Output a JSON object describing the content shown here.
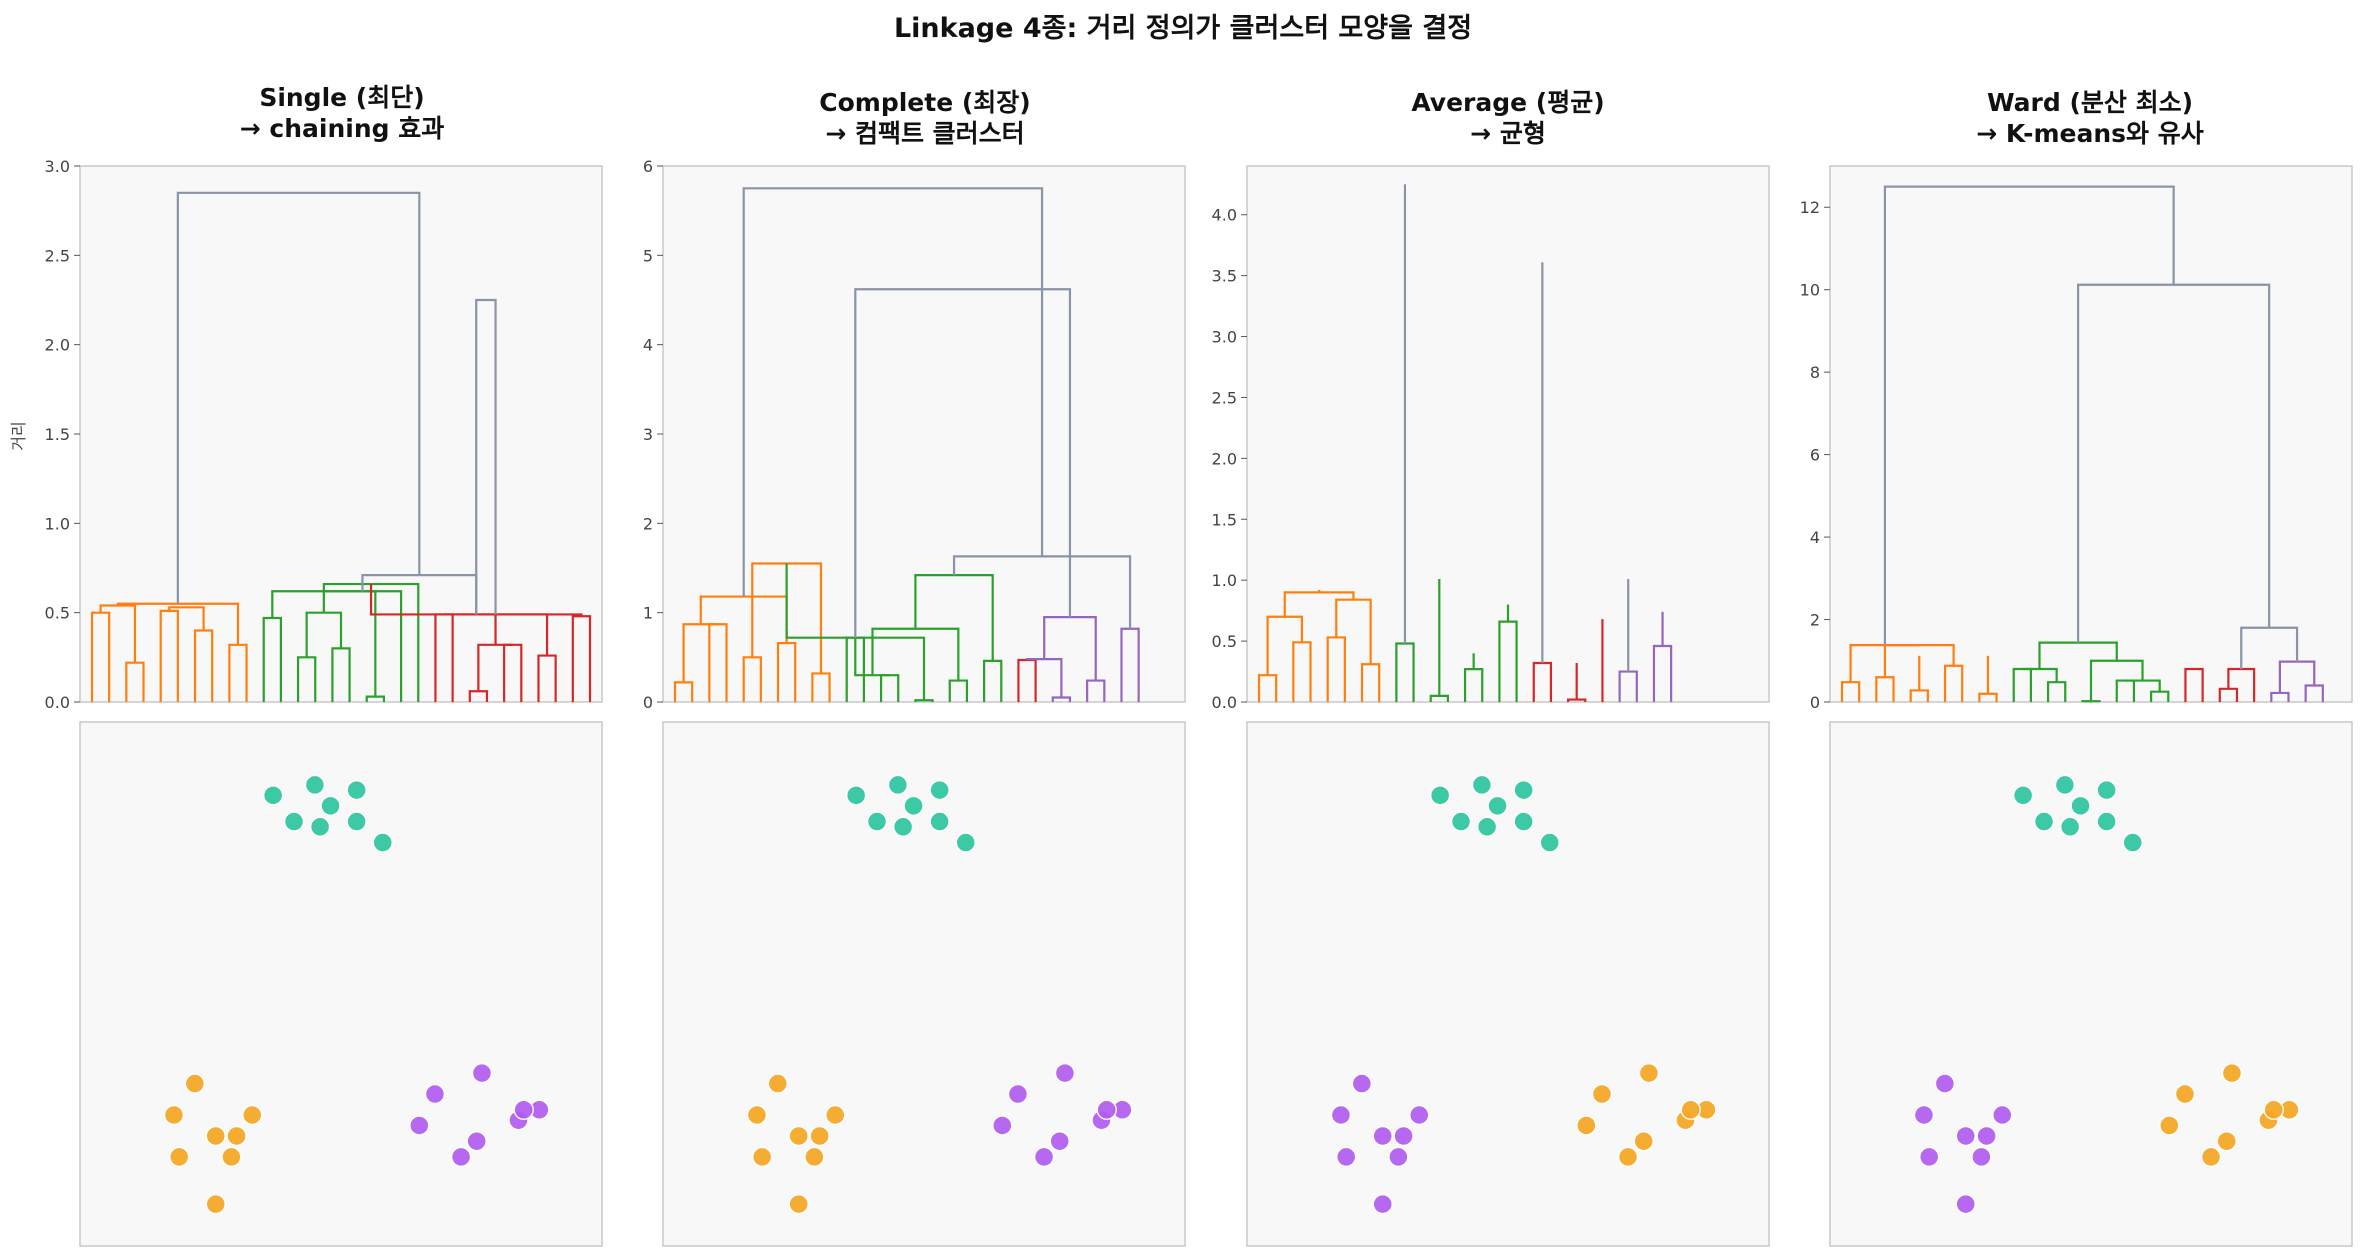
{
  "figure": {
    "title": "Linkage 4종: 거리 정의가 클러스터 모양을 결정",
    "ylabel": "거리"
  },
  "colors": {
    "c1": "#ff7f0e",
    "c2": "#2ca02c",
    "c3": "#d62728",
    "c4": "#9467bd",
    "above": "#8a94a6",
    "teal": "#2ec4a0",
    "orange_pt": "#f5a623",
    "purple_pt": "#b15cf0",
    "panel_bg": "#f8f8f8",
    "frame": "#c8c8c8"
  },
  "panels": [
    {
      "title_line1": "Single (최단)",
      "title_line2": "→ chaining 효과",
      "yticks": [
        "0.0",
        "0.5",
        "1.0",
        "1.5",
        "2.0",
        "2.5",
        "3.0"
      ]
    },
    {
      "title_line1": "Complete (최장)",
      "title_line2": "→ 컴팩트 클러스터",
      "yticks": [
        "0",
        "1",
        "2",
        "3",
        "4",
        "5",
        "6"
      ]
    },
    {
      "title_line1": "Average (평균)",
      "title_line2": "→ 균형",
      "yticks": [
        "0.0",
        "0.5",
        "1.0",
        "1.5",
        "2.0",
        "2.5",
        "3.0",
        "3.5",
        "4.0"
      ]
    },
    {
      "title_line1": "Ward (분산 최소)",
      "title_line2": "→ K-means와 유사",
      "yticks": [
        "0",
        "2",
        "4",
        "6",
        "8",
        "10",
        "12"
      ]
    }
  ],
  "chart_data": [
    {
      "type": "dendrogram",
      "title": "Single (최단)\n→ chaining 효과",
      "ylabel": "거리",
      "ylim": [
        0,
        3.0
      ],
      "n_leaves": 30,
      "links": [
        [
          0,
          1,
          0.5,
          "c1"
        ],
        [
          2,
          3,
          0.22,
          "c1"
        ],
        [
          4,
          5,
          0.51,
          "c1"
        ],
        [
          6,
          7,
          0.4,
          "c1"
        ],
        [
          8,
          9,
          0.32,
          "c1"
        ],
        [
          30,
          31,
          0.54,
          "c1"
        ],
        [
          32,
          33,
          0.53,
          "c1"
        ],
        [
          34,
          35,
          0.55,
          "c1"
        ],
        [
          10,
          11,
          0.47,
          "c2"
        ],
        [
          12,
          13,
          0.25,
          "c2"
        ],
        [
          14,
          15,
          0.3,
          "c2"
        ],
        [
          16,
          17,
          0.03,
          "c2"
        ],
        [
          39,
          40,
          0.5,
          "c2"
        ],
        [
          38,
          41,
          0.62,
          "c2"
        ],
        [
          42,
          18,
          0.62,
          "c2"
        ],
        [
          43,
          19,
          0.66,
          "c2"
        ],
        [
          20,
          21,
          0.49,
          "c3"
        ],
        [
          22,
          23,
          0.06,
          "c3"
        ],
        [
          24,
          25,
          0.32,
          "c3"
        ],
        [
          26,
          27,
          0.26,
          "c3"
        ],
        [
          28,
          29,
          0.48,
          "c3"
        ],
        [
          47,
          48,
          0.32,
          "c3"
        ],
        [
          46,
          49,
          0.49,
          "c3"
        ],
        [
          45,
          50,
          0.49,
          "c3"
        ],
        [
          51,
          52,
          0.49,
          "c3"
        ],
        [
          44,
          53,
          0.71,
          "above"
        ],
        [
          53,
          54,
          2.25,
          "above"
        ],
        [
          37,
          55,
          2.85,
          "above"
        ]
      ]
    },
    {
      "type": "dendrogram",
      "title": "Complete (최장)\n→ 컴팩트 클러스터",
      "ylim": [
        0,
        6
      ],
      "n_leaves": 30,
      "links": [
        [
          0,
          1,
          0.22,
          "c1"
        ],
        [
          2,
          3,
          0.87,
          "c1"
        ],
        [
          4,
          5,
          0.5,
          "c1"
        ],
        [
          30,
          31,
          0.87,
          "c1"
        ],
        [
          6,
          7,
          0.66,
          "c1"
        ],
        [
          8,
          9,
          0.32,
          "c1"
        ],
        [
          33,
          34,
          1.18,
          "c1"
        ],
        [
          32,
          35,
          1.55,
          "c1"
        ],
        [
          10,
          11,
          0.72,
          "c2"
        ],
        [
          12,
          13,
          0.3,
          "c2"
        ],
        [
          14,
          15,
          0.02,
          "c2"
        ],
        [
          38,
          39,
          0.3,
          "c2"
        ],
        [
          16,
          17,
          0.24,
          "c2"
        ],
        [
          18,
          19,
          0.46,
          "c2"
        ],
        [
          41,
          42,
          0.82,
          "c2"
        ],
        [
          37,
          40,
          0.72,
          "c2"
        ],
        [
          43,
          44,
          1.42,
          "c2"
        ],
        [
          20,
          21,
          0.47,
          "c3"
        ],
        [
          22,
          23,
          0.05,
          "c4"
        ],
        [
          24,
          25,
          0.24,
          "c4"
        ],
        [
          47,
          48,
          0.48,
          "c4"
        ],
        [
          26,
          27,
          0.82,
          "c4"
        ],
        [
          49,
          50,
          0.95,
          "c4"
        ],
        [
          46,
          51,
          1.63,
          "above"
        ],
        [
          45,
          52,
          4.62,
          "above"
        ],
        [
          36,
          53,
          5.75,
          "above"
        ]
      ]
    },
    {
      "type": "dendrogram",
      "title": "Average (평균)\n→ 균형",
      "ylim": [
        0,
        4.4
      ],
      "n_leaves": 30,
      "links": [
        [
          0,
          1,
          0.22,
          "c1"
        ],
        [
          2,
          3,
          0.49,
          "c1"
        ],
        [
          4,
          5,
          0.53,
          "c1"
        ],
        [
          6,
          7,
          0.31,
          "c1"
        ],
        [
          30,
          31,
          0.7,
          "c1"
        ],
        [
          32,
          33,
          0.84,
          "c1"
        ],
        [
          34,
          35,
          0.9,
          "c1"
        ],
        [
          36,
          37,
          0.92,
          "c1"
        ],
        [
          8,
          9,
          0.48,
          "c2"
        ],
        [
          10,
          11,
          0.05,
          "c2"
        ],
        [
          12,
          13,
          0.27,
          "c2"
        ],
        [
          40,
          41,
          0.4,
          "c2"
        ],
        [
          14,
          15,
          0.66,
          "c2"
        ],
        [
          42,
          43,
          0.8,
          "c2"
        ],
        [
          39,
          44,
          1.01,
          "c2"
        ],
        [
          16,
          17,
          0.32,
          "c3"
        ],
        [
          18,
          19,
          0.02,
          "c3"
        ],
        [
          46,
          47,
          0.32,
          "c3"
        ],
        [
          20,
          48,
          0.68,
          "c3"
        ],
        [
          21,
          22,
          0.25,
          "c4"
        ],
        [
          23,
          24,
          0.46,
          "c4"
        ],
        [
          50,
          51,
          0.74,
          "c4"
        ],
        [
          49,
          52,
          1.01,
          "above"
        ],
        [
          45,
          53,
          3.61,
          "above"
        ],
        [
          38,
          54,
          4.25,
          "above"
        ]
      ]
    },
    {
      "type": "dendrogram",
      "title": "Ward (분산 최소)\n→ K-means와 유사",
      "ylim": [
        0,
        13
      ],
      "n_leaves": 30,
      "links": [
        [
          0,
          1,
          0.48,
          "c1"
        ],
        [
          2,
          3,
          0.6,
          "c1"
        ],
        [
          4,
          5,
          0.28,
          "c1"
        ],
        [
          32,
          33,
          1.12,
          "c1"
        ],
        [
          6,
          7,
          0.88,
          "c1"
        ],
        [
          8,
          9,
          0.2,
          "c1"
        ],
        [
          35,
          36,
          1.12,
          "c1"
        ],
        [
          31,
          34,
          1.38,
          "c1"
        ],
        [
          30,
          37,
          1.38,
          "c1"
        ],
        [
          10,
          11,
          0.8,
          "c2"
        ],
        [
          12,
          13,
          0.48,
          "c2"
        ],
        [
          39,
          40,
          0.8,
          "c2"
        ],
        [
          14,
          15,
          0.02,
          "c2"
        ],
        [
          16,
          17,
          0.52,
          "c2"
        ],
        [
          18,
          19,
          0.25,
          "c2"
        ],
        [
          43,
          44,
          0.52,
          "c2"
        ],
        [
          42,
          45,
          1.0,
          "c2"
        ],
        [
          41,
          46,
          1.44,
          "c2"
        ],
        [
          20,
          21,
          0.8,
          "c3"
        ],
        [
          22,
          23,
          0.32,
          "c3"
        ],
        [
          49,
          24,
          0.8,
          "c3"
        ],
        [
          25,
          26,
          0.22,
          "c4"
        ],
        [
          27,
          28,
          0.4,
          "c4"
        ],
        [
          51,
          52,
          0.98,
          "c4"
        ],
        [
          50,
          53,
          1.8,
          "above"
        ],
        [
          47,
          54,
          10.12,
          "above"
        ],
        [
          38,
          55,
          12.5,
          "above"
        ]
      ]
    },
    {
      "type": "scatter",
      "description_of_axes": "no visible axes or ticks",
      "points_teal": [
        [
          0.37,
          0.14
        ],
        [
          0.45,
          0.12
        ],
        [
          0.53,
          0.19
        ],
        [
          0.53,
          0.13
        ],
        [
          0.41,
          0.19
        ],
        [
          0.48,
          0.16
        ],
        [
          0.46,
          0.2
        ],
        [
          0.58,
          0.23
        ]
      ],
      "points_orange": [
        [
          0.22,
          0.69
        ],
        [
          0.18,
          0.75
        ],
        [
          0.26,
          0.79
        ],
        [
          0.3,
          0.79
        ],
        [
          0.33,
          0.75
        ],
        [
          0.19,
          0.83
        ],
        [
          0.29,
          0.83
        ],
        [
          0.26,
          0.92
        ]
      ],
      "points_purple": [
        [
          0.68,
          0.71
        ],
        [
          0.77,
          0.67
        ],
        [
          0.65,
          0.77
        ],
        [
          0.84,
          0.76
        ],
        [
          0.88,
          0.74
        ],
        [
          0.76,
          0.8
        ],
        [
          0.73,
          0.83
        ],
        [
          0.85,
          0.74
        ]
      ],
      "panel_colors": [
        {
          "teal": "teal",
          "left_group": "orange_pt",
          "right_group": "purple_pt"
        },
        {
          "teal": "teal",
          "left_group": "orange_pt",
          "right_group": "purple_pt"
        },
        {
          "teal": "teal",
          "left_group": "purple_pt",
          "right_group": "orange_pt"
        },
        {
          "teal": "teal",
          "left_group": "purple_pt",
          "right_group": "orange_pt"
        }
      ]
    }
  ]
}
